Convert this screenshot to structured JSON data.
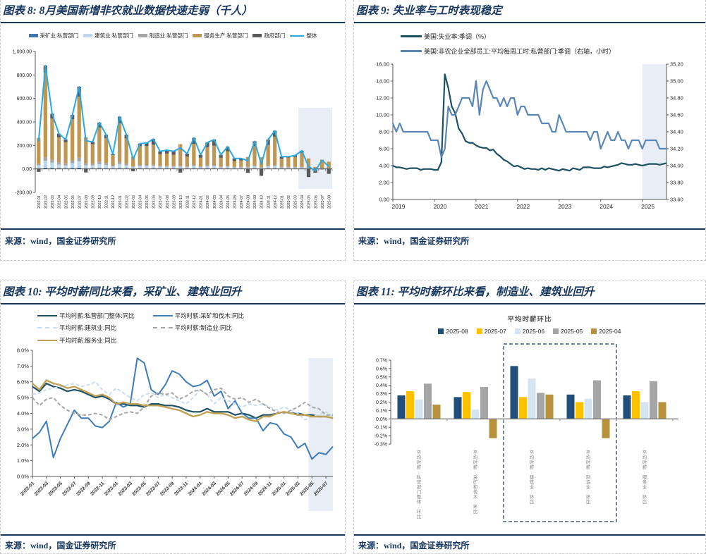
{
  "page": {
    "accent_navy": "#17375E",
    "highlight_color": "#E9EDF5"
  },
  "panels": [
    {
      "id": "chart8",
      "title": "图表 8: 8月美国新增非农就业数据快速走弱（千人）",
      "source": "来源：wind，国金证券研究所"
    },
    {
      "id": "chart9",
      "title": "图表 9: 失业率与工时表现稳定",
      "source": "来源：wind，国金证券研究所"
    },
    {
      "id": "chart10",
      "title": "图表 10: 平均时薪同比来看，采矿业、建筑业回升",
      "source": "来源：wind，国金证券研究所"
    },
    {
      "id": "chart11",
      "title": "图表 11: 平均时薪环比来看，制造业、建筑业回升",
      "source": "来源：wind，国金证券研究所"
    }
  ],
  "chart_data": [
    {
      "type": "bar",
      "subtype": "stacked-bar-with-line",
      "title": "8月美国新增非农就业数据快速走弱（千人）",
      "ylim": [
        -200,
        1000
      ],
      "ytick_step": 200,
      "legend_position": "top",
      "highlight_from": "2025-04",
      "highlight_color": "#E9EDF5",
      "categories": [
        "2022-01",
        "2022-02",
        "2022-03",
        "2022-04",
        "2022-05",
        "2022-06",
        "2022-07",
        "2022-08",
        "2022-09",
        "2022-10",
        "2022-11",
        "2022-12",
        "2023-01",
        "2023-02",
        "2023-03",
        "2023-04",
        "2023-05",
        "2023-06",
        "2023-07",
        "2023-08",
        "2023-09",
        "2023-10",
        "2023-11",
        "2023-12",
        "2024-01",
        "2024-02",
        "2024-03",
        "2024-04",
        "2024-05",
        "2024-06",
        "2024-07",
        "2024-08",
        "2024-09",
        "2024-10",
        "2024-11",
        "2024-12",
        "2025-01",
        "2025-02",
        "2025-03",
        "2025-04",
        "2025-05",
        "2025-06",
        "2025-07",
        "2025-08"
      ],
      "series": [
        {
          "name": "采矿业:私营部门",
          "color": "#4477AD",
          "values": [
            5,
            10,
            8,
            6,
            5,
            8,
            10,
            5,
            5,
            6,
            5,
            3,
            6,
            5,
            2,
            4,
            4,
            4,
            3,
            3,
            3,
            3,
            3,
            4,
            2,
            4,
            4,
            2,
            3,
            2,
            2,
            2,
            3,
            2,
            3,
            4,
            2,
            2,
            2,
            2,
            1,
            1,
            1,
            1
          ]
        },
        {
          "name": "建筑业:私营部门",
          "color": "#BDD7EE",
          "values": [
            25,
            60,
            45,
            30,
            25,
            40,
            55,
            25,
            25,
            35,
            28,
            18,
            35,
            25,
            15,
            20,
            20,
            22,
            15,
            15,
            15,
            15,
            12,
            20,
            12,
            18,
            20,
            12,
            15,
            10,
            10,
            10,
            18,
            8,
            18,
            20,
            10,
            10,
            10,
            10,
            5,
            4,
            5,
            4
          ]
        },
        {
          "name": "制造业:私营部门",
          "color": "#A6A6A6",
          "values": [
            15,
            30,
            25,
            20,
            18,
            25,
            30,
            18,
            15,
            22,
            18,
            10,
            20,
            15,
            8,
            10,
            10,
            10,
            8,
            8,
            8,
            8,
            6,
            10,
            6,
            10,
            10,
            6,
            8,
            5,
            5,
            5,
            8,
            4,
            8,
            10,
            5,
            5,
            5,
            5,
            3,
            2,
            3,
            2
          ]
        },
        {
          "name": "服务生产:私营部门",
          "color": "#BF9752",
          "values": [
            220,
            720,
            350,
            215,
            180,
            350,
            520,
            222,
            165,
            290,
            210,
            85,
            330,
            215,
            80,
            160,
            160,
            170,
            100,
            105,
            95,
            185,
            85,
            180,
            75,
            155,
            165,
            75,
            125,
            50,
            55,
            85,
            165,
            85,
            175,
            240,
            70,
            80,
            85,
            120,
            80,
            10,
            70,
            55
          ]
        },
        {
          "name": "政府部门",
          "color": "#595959",
          "values": [
            -25,
            60,
            42,
            29,
            22,
            37,
            85,
            -30,
            20,
            42,
            29,
            9,
            54,
            30,
            -20,
            21,
            26,
            49,
            24,
            29,
            29,
            -31,
            24,
            51,
            25,
            38,
            51,
            25,
            39,
            23,
            18,
            -32,
            41,
            -59,
            46,
            51,
            18,
            8,
            13,
            18,
            -69,
            -32,
            -4,
            -42
          ]
        }
      ],
      "line_series": {
        "name": "整体",
        "color": "#2BAAE2",
        "values": [
          240,
          880,
          470,
          300,
          250,
          460,
          700,
          240,
          230,
          395,
          290,
          125,
          445,
          290,
          85,
          215,
          220,
          255,
          150,
          160,
          150,
          180,
          130,
          265,
          120,
          225,
          250,
          120,
          190,
          90,
          90,
          70,
          235,
          40,
          250,
          325,
          105,
          105,
          115,
          155,
          20,
          -15,
          75,
          20
        ]
      }
    },
    {
      "type": "line",
      "subtype": "dual-axis-line",
      "title": "失业率与工时表现稳定",
      "x_start": "2019-01",
      "x_count": 80,
      "left_ylim": [
        0,
        16
      ],
      "right_ylim": [
        33.6,
        35.2
      ],
      "highlight_from_index": 72,
      "highlight_color": "#E9EDF5",
      "xticks": {
        "labels": [
          "2019",
          "2020",
          "2021",
          "2022",
          "2023",
          "2024",
          "2025"
        ],
        "indices": [
          0,
          12,
          24,
          36,
          48,
          60,
          72
        ]
      },
      "series": [
        {
          "name": "美国:失业率:季调（%）",
          "color": "#1E5064",
          "axis": "left",
          "values": [
            4.0,
            3.8,
            3.8,
            3.7,
            3.6,
            3.7,
            3.7,
            3.7,
            3.5,
            3.6,
            3.6,
            3.6,
            3.5,
            3.5,
            4.4,
            14.8,
            13.2,
            11.0,
            10.2,
            8.4,
            7.8,
            6.9,
            6.7,
            6.7,
            6.4,
            6.2,
            6.1,
            6.1,
            5.8,
            5.9,
            5.4,
            5.1,
            4.7,
            4.5,
            4.2,
            3.9,
            4.0,
            3.8,
            3.6,
            3.7,
            3.6,
            3.6,
            3.5,
            3.7,
            3.5,
            3.7,
            3.6,
            3.5,
            3.4,
            3.6,
            3.5,
            3.4,
            3.7,
            3.6,
            3.5,
            3.8,
            3.8,
            3.8,
            3.7,
            3.7,
            3.7,
            3.9,
            3.8,
            3.9,
            4.0,
            4.1,
            4.3,
            4.2,
            4.1,
            4.1,
            4.2,
            4.1,
            4.0,
            4.1,
            4.2,
            4.2,
            4.2,
            4.1,
            4.2,
            4.3
          ]
        },
        {
          "name": "美国:非农企业全部员工:平均每周工时:私营部门:季调（右轴，小时）",
          "color": "#5B87B7",
          "axis": "right",
          "values": [
            34.5,
            34.4,
            34.5,
            34.4,
            34.4,
            34.4,
            34.4,
            34.4,
            34.4,
            34.4,
            34.4,
            34.3,
            34.3,
            34.3,
            34.1,
            34.2,
            34.7,
            34.6,
            34.6,
            34.7,
            34.8,
            34.8,
            34.8,
            34.7,
            35.0,
            34.6,
            34.9,
            35.0,
            34.9,
            34.8,
            34.8,
            34.7,
            34.8,
            34.7,
            34.8,
            34.8,
            34.6,
            34.7,
            34.7,
            34.6,
            34.6,
            34.6,
            34.6,
            34.5,
            34.5,
            34.5,
            34.4,
            34.4,
            34.6,
            34.5,
            34.4,
            34.4,
            34.4,
            34.4,
            34.4,
            34.4,
            34.4,
            34.3,
            34.4,
            34.4,
            34.2,
            34.3,
            34.4,
            34.3,
            34.3,
            34.4,
            34.3,
            34.3,
            34.2,
            34.3,
            34.3,
            34.3,
            34.2,
            34.3,
            34.3,
            34.3,
            34.3,
            34.2,
            34.2,
            34.2
          ]
        }
      ]
    },
    {
      "type": "line",
      "subtype": "multi-line",
      "title": "平均时薪同比来看，采矿业、建筑业回升",
      "ylim": [
        0,
        8
      ],
      "highlight_from": "2025-05",
      "highlight_color": "#E9EDF5",
      "categories": [
        "2022-01",
        "2022-02",
        "2022-03",
        "2022-04",
        "2022-05",
        "2022-06",
        "2022-07",
        "2022-08",
        "2022-09",
        "2022-10",
        "2022-11",
        "2022-12",
        "2023-01",
        "2023-02",
        "2023-03",
        "2023-04",
        "2023-05",
        "2023-06",
        "2023-07",
        "2023-08",
        "2023-09",
        "2023-10",
        "2023-11",
        "2023-12",
        "2024-01",
        "2024-02",
        "2024-03",
        "2024-04",
        "2024-05",
        "2024-06",
        "2024-07",
        "2024-08",
        "2024-09",
        "2024-10",
        "2024-11",
        "2024-12",
        "2025-01",
        "2025-02",
        "2025-03",
        "2025-04",
        "2025-05",
        "2025-06",
        "2025-07",
        "2025-08"
      ],
      "series": [
        {
          "name": "平均时薪:私营部门整体:同比",
          "color": "#1E5064",
          "dash": false,
          "width": 2.2,
          "values": [
            5.7,
            5.4,
            5.9,
            5.7,
            5.6,
            5.4,
            5.5,
            5.4,
            5.2,
            5.0,
            5.1,
            4.9,
            4.6,
            4.6,
            4.5,
            4.5,
            4.4,
            4.6,
            4.6,
            4.5,
            4.5,
            4.4,
            4.2,
            4.1,
            4.1,
            4.3,
            4.1,
            4.1,
            4.1,
            3.9,
            4.0,
            3.9,
            3.7,
            3.9,
            3.9,
            4.0,
            4.1,
            4.0,
            4.0,
            3.9,
            3.9,
            3.8,
            3.8,
            3.7
          ]
        },
        {
          "name": "平均时薪:采矿和伐木:同比",
          "color": "#3E7CB8",
          "dash": false,
          "width": 2,
          "values": [
            2.4,
            2.8,
            3.5,
            1.2,
            2.4,
            3.3,
            4.2,
            3.7,
            3.7,
            3.2,
            3.1,
            3.5,
            4.7,
            4.4,
            4.6,
            7.5,
            7.2,
            5.5,
            5.2,
            5.8,
            6.7,
            6.5,
            6.0,
            5.7,
            5.8,
            6.1,
            5.1,
            5.4,
            4.3,
            4.8,
            4.0,
            3.7,
            3.7,
            2.9,
            3.4,
            3.3,
            2.7,
            2.5,
            1.8,
            2.1,
            1.1,
            1.5,
            1.4,
            1.9
          ]
        },
        {
          "name": "平均时薪:建筑业:同比",
          "color": "#C9DDF0",
          "dash": true,
          "width": 2,
          "values": [
            5.2,
            5.3,
            5.5,
            5.6,
            5.7,
            5.8,
            5.9,
            5.7,
            5.8,
            6.0,
            5.5,
            5.2,
            5.6,
            5.3,
            5.0,
            4.8,
            5.2,
            5.3,
            5.0,
            5.2,
            5.0,
            4.8,
            4.6,
            5.0,
            5.5,
            5.2,
            4.6,
            5.0,
            4.8,
            4.6,
            4.4,
            4.6,
            4.5,
            4.6,
            4.4,
            4.2,
            4.4,
            4.2,
            4.0,
            3.6,
            3.8,
            3.9,
            4.1,
            3.8
          ]
        },
        {
          "name": "平均时薪:制造业:同比",
          "color": "#A6A6A6",
          "dash": true,
          "width": 2,
          "values": [
            5.0,
            4.5,
            4.9,
            5.0,
            4.5,
            4.2,
            4.0,
            3.9,
            3.9,
            4.0,
            3.9,
            3.6,
            3.8,
            4.0,
            4.1,
            4.0,
            4.4,
            5.1,
            5.3,
            5.2,
            5.3,
            4.9,
            5.1,
            5.4,
            5.5,
            5.2,
            5.5,
            5.6,
            5.1,
            4.9,
            5.0,
            4.7,
            4.9,
            4.6,
            4.3,
            4.1,
            4.0,
            4.2,
            4.4,
            4.7,
            4.4,
            4.3,
            3.9,
            3.9
          ]
        },
        {
          "name": "平均时薪:服务业:同比",
          "color": "#C0A257",
          "dash": false,
          "width": 2.4,
          "values": [
            5.9,
            5.5,
            6.1,
            5.9,
            5.8,
            5.6,
            5.7,
            5.5,
            5.3,
            5.1,
            5.2,
            5.0,
            4.6,
            4.7,
            4.6,
            4.6,
            4.5,
            4.5,
            4.5,
            4.4,
            4.3,
            4.2,
            4.0,
            3.8,
            3.9,
            4.1,
            4.0,
            4.0,
            3.9,
            3.7,
            3.8,
            3.6,
            3.5,
            3.8,
            3.8,
            4.0,
            4.1,
            4.0,
            3.9,
            3.9,
            3.8,
            3.8,
            3.8,
            3.7
          ]
        }
      ]
    },
    {
      "type": "bar",
      "subtype": "grouped-bar",
      "title": "平均时薪环比来看，制造业、建筑业回升",
      "inner_title": "平均时薪环比",
      "ylim": [
        -0.3,
        0.7
      ],
      "box_from": 2,
      "box_to": 4,
      "categories": [
        "平均时薪:私营部门整体:环比",
        "平均时薪:采矿和伐木:环比",
        "平均时薪:建筑业:环比",
        "平均时薪:制造业:环比",
        "平均时薪:服务业:环比"
      ],
      "series": [
        {
          "name": "2025-08",
          "color": "#1F4E79",
          "values": [
            0.28,
            0.26,
            0.63,
            0.29,
            0.28
          ]
        },
        {
          "name": "2025-07",
          "color": "#FFC000",
          "values": [
            0.33,
            0.32,
            0.26,
            0.2,
            0.33
          ]
        },
        {
          "name": "2025-06",
          "color": "#D6E4F2",
          "values": [
            0.23,
            0.11,
            0.48,
            0.24,
            0.2
          ]
        },
        {
          "name": "2025-05",
          "color": "#A6A6A6",
          "values": [
            0.42,
            0.38,
            0.31,
            0.46,
            0.45
          ]
        },
        {
          "name": "2025-04",
          "color": "#B8913F",
          "values": [
            0.17,
            -0.23,
            0.29,
            -0.23,
            0.2
          ]
        }
      ]
    }
  ]
}
